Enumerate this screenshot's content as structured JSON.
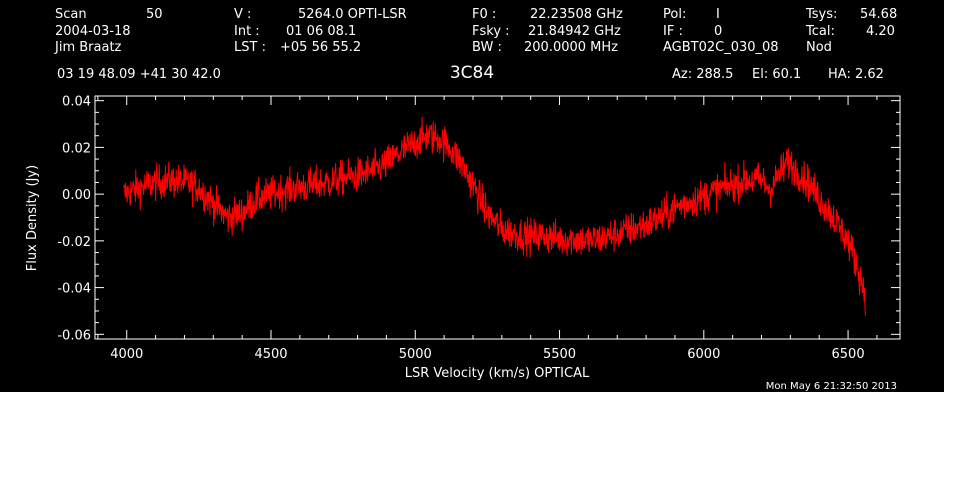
{
  "header": {
    "row1": {
      "scan_label": "Scan",
      "scan_value": "50",
      "v_label": "V   :",
      "v_value": "5264.0 OPTI-LSR",
      "f0_label": "F0   :",
      "f0_value": "22.23508 GHz",
      "pol_label": "Pol:",
      "pol_value": "I",
      "tsys_label": "Tsys:",
      "tsys_value": "54.68"
    },
    "row2": {
      "date": "2004-03-18",
      "int_label": "Int   :",
      "int_value": "01 06 08.1",
      "fsky_label": "Fsky :",
      "fsky_value": "21.84942 GHz",
      "if_label": "IF :",
      "if_value": "0",
      "tcal_label": "Tcal:",
      "tcal_value": "4.20"
    },
    "row3": {
      "observer": "Jim Braatz",
      "lst_label": "LST :",
      "lst_value": "+05 56 55.2",
      "bw_label": "BW   :",
      "bw_value": "200.0000 MHz",
      "project": "AGBT02C_030_08",
      "mode": "Nod"
    },
    "coords": "03 19 48.09  +41 30 42.0",
    "source": "3C84",
    "az": "Az: 288.5",
    "el": "El:  60.1",
    "ha": "HA:  2.62"
  },
  "timestamp": "Mon May  6 21:32:50 2013",
  "colors": {
    "background": "#000000",
    "foreground": "#ffffff",
    "trace": "#ff0000"
  },
  "chart_data": {
    "type": "line",
    "title": "3C84",
    "xlabel": "LSR Velocity (km/s) OPTICAL",
    "ylabel": "Flux Density (Jy)",
    "xlim": [
      3890,
      6680
    ],
    "ylim": [
      -0.062,
      0.042
    ],
    "xticks": [
      4000,
      4500,
      5000,
      5500,
      6000,
      6500
    ],
    "xtick_labels": [
      "4000",
      "4500",
      "5000",
      "5500",
      "6000",
      "6500"
    ],
    "yticks": [
      0.04,
      0.02,
      0.0,
      -0.02,
      -0.04,
      -0.06
    ],
    "ytick_labels": [
      "0.04",
      "0.02",
      "0.00",
      "-0.02",
      "-0.04",
      "-0.06"
    ],
    "grid": false,
    "noise_rms": 0.004,
    "series": [
      {
        "color": "#ff0000",
        "x": [
          3990,
          4050,
          4100,
          4150,
          4200,
          4250,
          4300,
          4350,
          4400,
          4450,
          4500,
          4550,
          4600,
          4650,
          4700,
          4750,
          4800,
          4850,
          4900,
          4950,
          5000,
          5040,
          5080,
          5120,
          5160,
          5200,
          5250,
          5300,
          5350,
          5400,
          5450,
          5500,
          5550,
          5600,
          5650,
          5700,
          5750,
          5800,
          5850,
          5900,
          5950,
          6000,
          6050,
          6100,
          6150,
          6200,
          6230,
          6260,
          6290,
          6330,
          6370,
          6400,
          6450,
          6500,
          6530,
          6560
        ],
        "y": [
          0.0,
          0.003,
          0.005,
          0.006,
          0.005,
          0.003,
          -0.004,
          -0.01,
          -0.008,
          -0.002,
          0.0,
          0.002,
          0.003,
          0.004,
          0.005,
          0.007,
          0.008,
          0.01,
          0.013,
          0.018,
          0.022,
          0.025,
          0.024,
          0.02,
          0.013,
          0.004,
          -0.008,
          -0.015,
          -0.017,
          -0.018,
          -0.018,
          -0.019,
          -0.019,
          -0.02,
          -0.019,
          -0.017,
          -0.015,
          -0.013,
          -0.01,
          -0.006,
          -0.003,
          -0.001,
          0.002,
          0.004,
          0.006,
          0.006,
          0.002,
          0.008,
          0.014,
          0.009,
          0.004,
          -0.002,
          -0.01,
          -0.02,
          -0.03,
          -0.043
        ]
      }
    ]
  }
}
